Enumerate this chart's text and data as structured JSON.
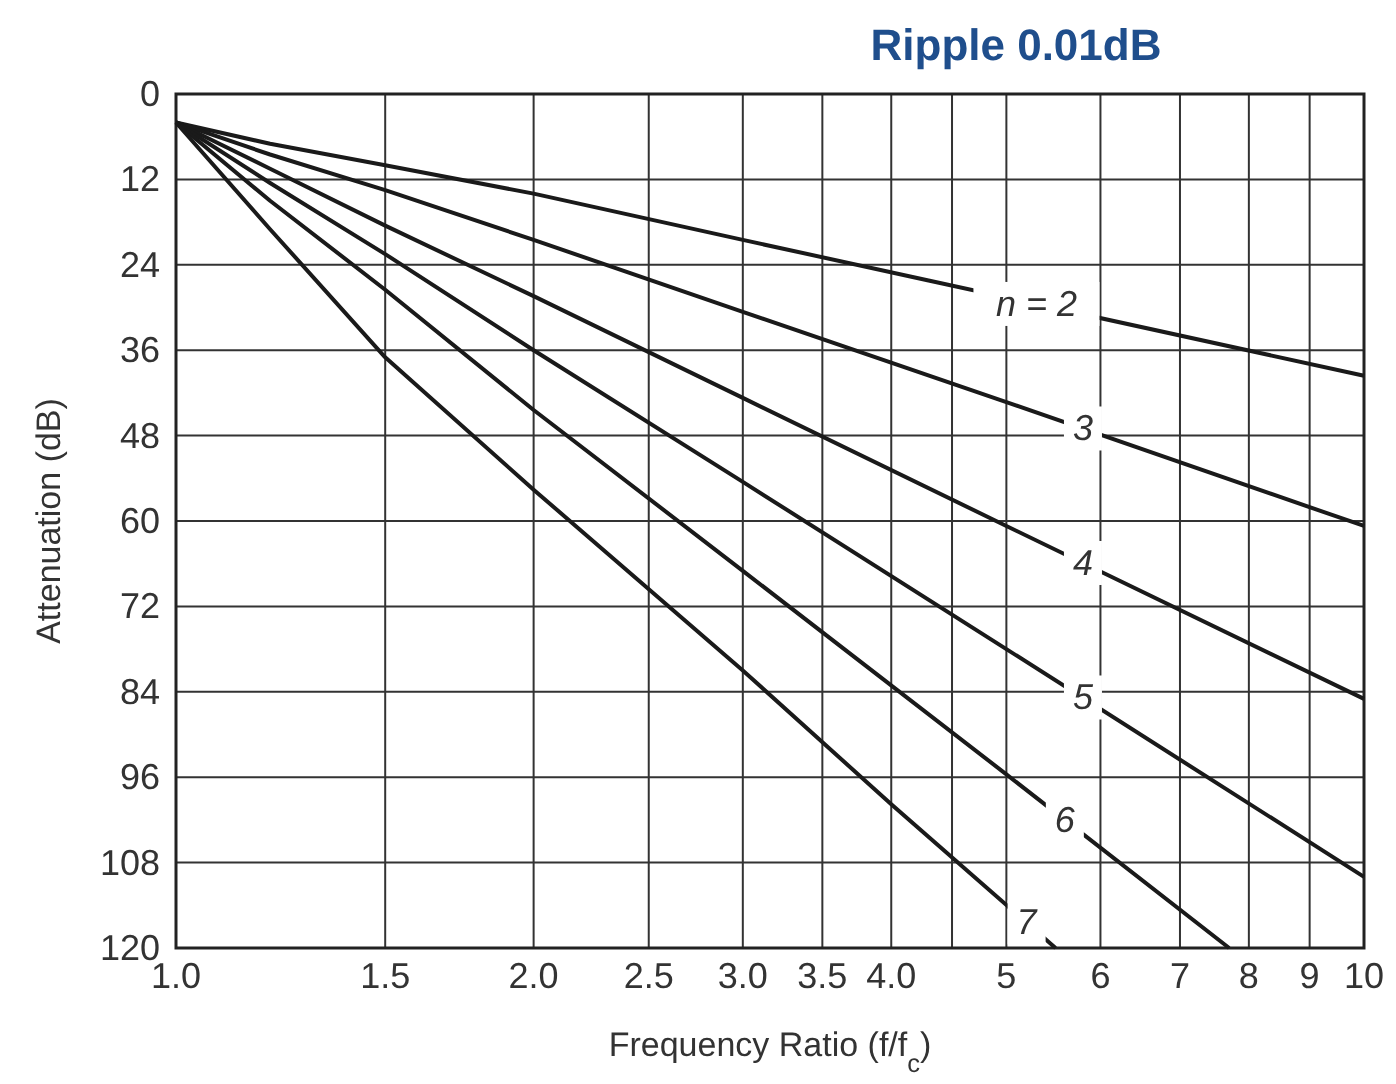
{
  "chart_data": {
    "type": "line",
    "title": "Ripple 0.01dB",
    "xlabel": "Frequency Ratio (f/f$_{c}$)",
    "ylabel": "Attenuation (dB)",
    "log": "x",
    "grid": true,
    "line_style": "solid",
    "marker": "none",
    "xlim": [
      1,
      10
    ],
    "xticks": [
      {
        "value": 1,
        "label": "1.0"
      },
      {
        "value": 1.5,
        "label": "1.5"
      },
      {
        "value": 2,
        "label": "2.0"
      },
      {
        "value": 2.5,
        "label": "2.5"
      },
      {
        "value": 3,
        "label": "3.0"
      },
      {
        "value": 3.5,
        "label": "3.5"
      },
      {
        "value": 4,
        "label": "4.0"
      },
      {
        "value": 4.5,
        "label": null
      },
      5,
      6,
      7,
      8,
      9,
      10
    ],
    "ylim": [
      120,
      0
    ],
    "yticks": [
      0,
      12,
      24,
      36,
      48,
      60,
      72,
      84,
      96,
      108,
      120
    ],
    "series": [
      {
        "color": "#1a1a1a",
        "x": [
          1,
          1.2,
          1.5,
          2,
          3,
          4.3,
          10
        ],
        "values": [
          4,
          7,
          10,
          14,
          20.5,
          26.2,
          39.6
        ]
      },
      {
        "color": "#1a1a1a",
        "x": [
          1,
          1.2,
          1.5,
          2,
          3,
          5,
          10
        ],
        "values": [
          4,
          8.5,
          13.5,
          20.5,
          30.6,
          43.3,
          60.7
        ]
      },
      {
        "color": "#1a1a1a",
        "x": [
          1,
          1.2,
          1.5,
          2,
          3,
          5,
          10
        ],
        "values": [
          4,
          10.5,
          18.5,
          28.4,
          42.7,
          60.7,
          85
        ]
      },
      {
        "color": "#1a1a1a",
        "x": [
          1,
          1.2,
          1.5,
          2,
          3,
          5,
          10
        ],
        "values": [
          4,
          12.5,
          22.5,
          36,
          54.5,
          78,
          110
        ]
      },
      {
        "color": "#1a1a1a",
        "x": [
          1,
          1.2,
          1.5,
          2,
          3,
          5,
          7.7
        ],
        "values": [
          4,
          15,
          27.5,
          44.4,
          67,
          95.6,
          120
        ]
      },
      {
        "color": "#1a1a1a",
        "x": [
          1,
          1.2,
          1.5,
          2,
          3,
          4,
          5.5
        ],
        "values": [
          4,
          19,
          37,
          55.6,
          81,
          99.8,
          120
        ]
      }
    ],
    "annotations": [
      {
        "text": "n = 2",
        "x": 5.3,
        "y": 29.5
      },
      {
        "text": "3",
        "x": 5.8,
        "y": 47
      },
      {
        "text": "4",
        "x": 5.8,
        "y": 65.9
      },
      {
        "text": "5",
        "x": 5.8,
        "y": 84.8
      },
      {
        "text": "6",
        "x": 5.6,
        "y": 102
      },
      {
        "text": "7",
        "x": 5.2,
        "y": 116.4
      }
    ]
  }
}
